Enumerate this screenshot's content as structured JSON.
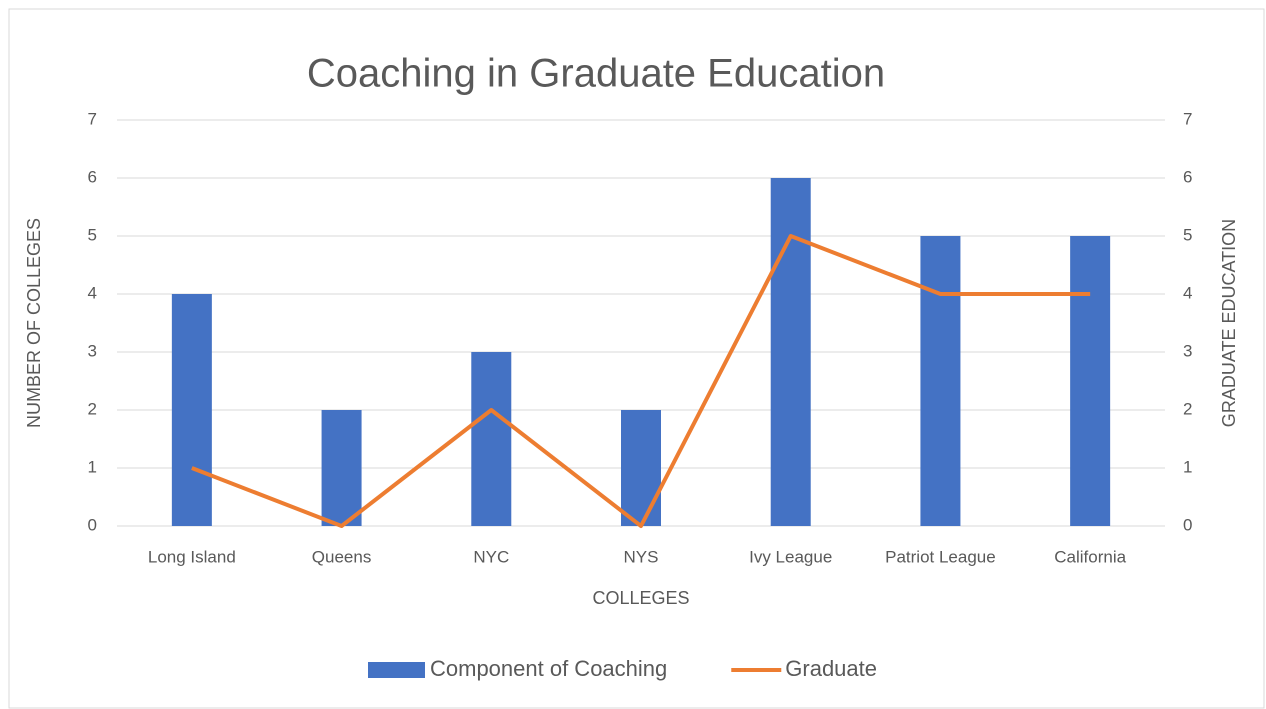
{
  "chart_data": {
    "type": "bar",
    "title": "Coaching in Graduate Education",
    "x_label": "COLLEGES",
    "y_label": "NUMBER OF COLLEGES",
    "y2_label": "GRADUATE EDUCATION",
    "categories": [
      "Long Island",
      "Queens",
      "NYC",
      "NYS",
      "Ivy League",
      "Patriot League",
      "California"
    ],
    "series": [
      {
        "name": "Component of Coaching",
        "type": "bar",
        "color": "#4472c4",
        "values": [
          4,
          2,
          3,
          2,
          6,
          5,
          5
        ]
      },
      {
        "name": "Graduate",
        "type": "line",
        "axis": "y2",
        "color": "#ed7d31",
        "values": [
          1,
          0,
          2,
          0,
          5,
          4,
          4
        ]
      }
    ],
    "ylim": [
      0,
      7
    ],
    "yticks": [
      0,
      1,
      2,
      3,
      4,
      5,
      6,
      7
    ],
    "y2lim": [
      0,
      7
    ],
    "y2ticks": [
      0,
      1,
      2,
      3,
      4,
      5,
      6,
      7
    ],
    "grid": true,
    "legend": "bottom"
  }
}
